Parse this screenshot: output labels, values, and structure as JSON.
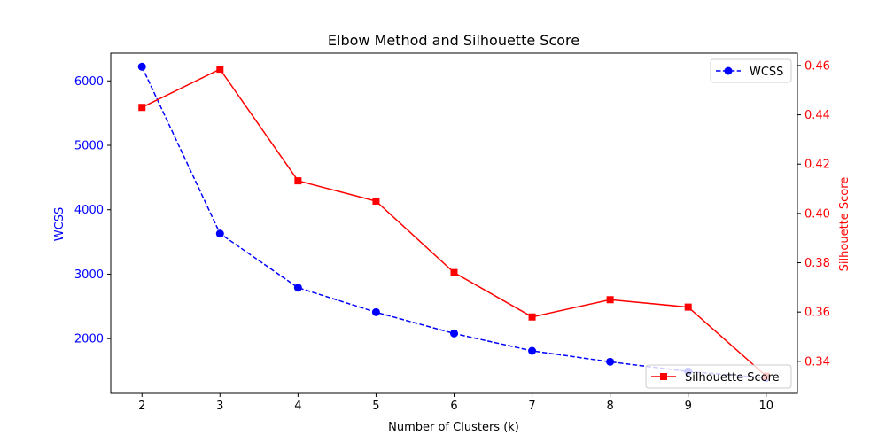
{
  "chart_data": {
    "type": "line",
    "title": "Elbow Method and Silhouette Score",
    "xlabel": "Number of Clusters (k)",
    "ylabel_left": "WCSS",
    "ylabel_right": "Silhouette Score",
    "x": [
      2,
      3,
      4,
      5,
      6,
      7,
      8,
      9,
      10
    ],
    "xlim": [
      1.6,
      10.4
    ],
    "x_ticks": [
      "2",
      "3",
      "4",
      "5",
      "6",
      "7",
      "8",
      "9",
      "10"
    ],
    "y_left_lim": [
      1150,
      6430
    ],
    "y_left_ticks": [
      "2000",
      "3000",
      "4000",
      "5000",
      "6000"
    ],
    "y_right_lim": [
      0.327,
      0.465
    ],
    "y_right_ticks": [
      "0.34",
      "0.36",
      "0.38",
      "0.40",
      "0.42",
      "0.44",
      "0.46"
    ],
    "series": [
      {
        "name": "WCSS",
        "axis": "left",
        "color": "#0000ff",
        "linestyle": "dashed",
        "marker": "circle",
        "values": [
          6220,
          3630,
          2790,
          2410,
          2080,
          1810,
          1640,
          1490,
          1390
        ]
      },
      {
        "name": "Silhouette Score",
        "axis": "right",
        "color": "#ff0000",
        "linestyle": "solid",
        "marker": "square",
        "values": [
          0.443,
          0.4585,
          0.4132,
          0.405,
          0.376,
          0.358,
          0.365,
          0.362,
          0.334
        ]
      }
    ],
    "legends": [
      {
        "series": "WCSS",
        "placement": "upper right"
      },
      {
        "series": "Silhouette Score",
        "placement": "lower right"
      }
    ],
    "grid": false
  }
}
